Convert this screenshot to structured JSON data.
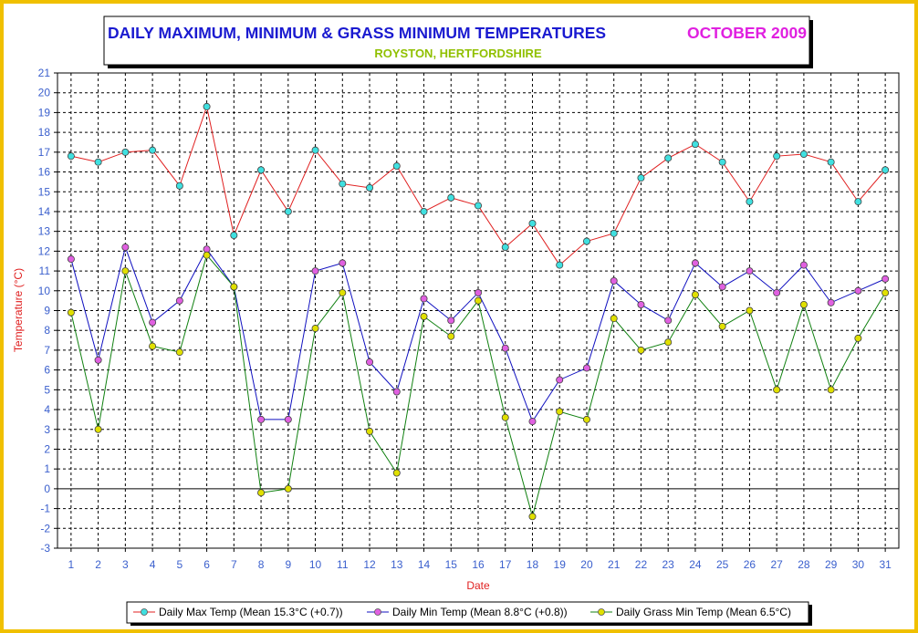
{
  "header": {
    "title": "DAILY MAXIMUM, MINIMUM & GRASS MINIMUM TEMPERATURES",
    "period": "OCTOBER 2009",
    "location": "ROYSTON, HERTFORDSHIRE"
  },
  "colors": {
    "frame": "#f0c000",
    "title": "#1a1ad0",
    "period": "#e020e0",
    "location": "#90c000",
    "axis_title": "#e02020",
    "tick_label": "#3a5fcd",
    "max_line": "#e02020",
    "max_marker": "#40e0e0",
    "min_line": "#1010c0",
    "min_marker": "#e060e0",
    "grass_line": "#108010",
    "grass_marker": "#e0e000"
  },
  "chart_data": {
    "type": "line",
    "xlabel": "Date",
    "ylabel": "Temperature (°C)",
    "ylim": [
      -3,
      21
    ],
    "xlim": [
      0.5,
      31.5
    ],
    "grid": true,
    "legend_position": "bottom",
    "x": [
      1,
      2,
      3,
      4,
      5,
      6,
      7,
      8,
      9,
      10,
      11,
      12,
      13,
      14,
      15,
      16,
      17,
      18,
      19,
      20,
      21,
      22,
      23,
      24,
      25,
      26,
      27,
      28,
      29,
      30,
      31
    ],
    "x_ticks": [
      "1",
      "2",
      "3",
      "4",
      "5",
      "6",
      "7",
      "8",
      "9",
      "10",
      "11",
      "12",
      "13",
      "14",
      "15",
      "16",
      "17",
      "18",
      "19",
      "20",
      "21",
      "22",
      "23",
      "24",
      "25",
      "26",
      "27",
      "28",
      "29",
      "30",
      "31"
    ],
    "y_ticks": [
      "-3",
      "-2",
      "-1",
      "0",
      "1",
      "2",
      "3",
      "4",
      "5",
      "6",
      "7",
      "8",
      "9",
      "10",
      "11",
      "12",
      "13",
      "14",
      "15",
      "16",
      "17",
      "18",
      "19",
      "20",
      "21"
    ],
    "series": [
      {
        "name": "Daily Max Temp (Mean 15.3°C (+0.7))",
        "values": [
          16.8,
          16.5,
          17.0,
          17.1,
          15.3,
          19.3,
          12.8,
          16.1,
          14.0,
          17.1,
          15.4,
          15.2,
          16.3,
          14.0,
          14.7,
          14.3,
          12.2,
          13.4,
          11.3,
          12.5,
          12.9,
          15.7,
          16.7,
          17.4,
          16.5,
          14.5,
          16.8,
          16.9,
          16.5,
          14.5,
          16.1
        ]
      },
      {
        "name": "Daily Min Temp (Mean 8.8°C (+0.8))",
        "values": [
          11.6,
          6.5,
          12.2,
          8.4,
          9.5,
          12.1,
          10.2,
          3.5,
          3.5,
          11.0,
          11.4,
          6.4,
          4.9,
          9.6,
          8.5,
          9.9,
          7.1,
          3.4,
          5.5,
          6.1,
          10.5,
          9.3,
          8.5,
          11.4,
          10.2,
          11.0,
          9.9,
          11.3,
          9.4,
          10.0,
          10.6
        ]
      },
      {
        "name": "Daily Grass Min Temp (Mean 6.5°C)",
        "values": [
          8.9,
          3.0,
          11.0,
          7.2,
          6.9,
          11.8,
          10.2,
          -0.2,
          0.0,
          8.1,
          9.9,
          2.9,
          0.8,
          8.7,
          7.7,
          9.5,
          3.6,
          -1.4,
          3.9,
          3.5,
          8.6,
          7.0,
          7.4,
          9.8,
          8.2,
          9.0,
          5.0,
          9.3,
          5.0,
          7.6,
          9.9
        ]
      }
    ]
  }
}
